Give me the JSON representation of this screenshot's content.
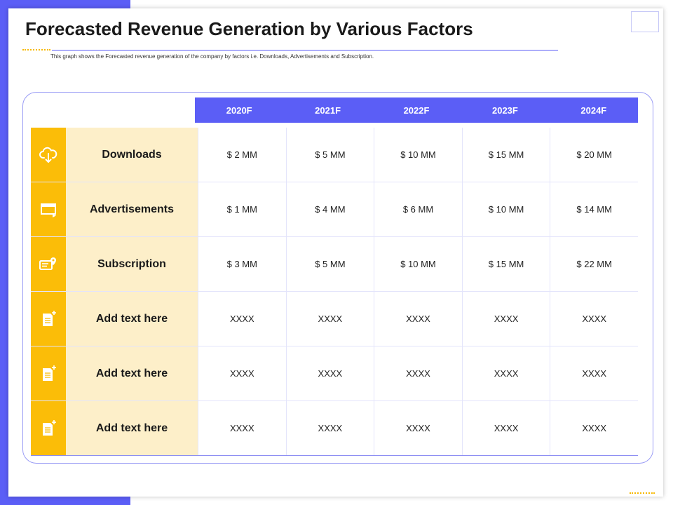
{
  "title": "Forecasted Revenue Generation by Various Factors",
  "subtitle": "This graph shows the Forecasted revenue generation  of the company by factors i.e. Downloads, Advertisements  and Subscription.",
  "colors": {
    "accent": "#5b5ef6",
    "yellow": "#fbbd08",
    "light_yellow": "#fdefc9"
  },
  "years": [
    "2020F",
    "2021F",
    "2022F",
    "2023F",
    "2024F"
  ],
  "rows": [
    {
      "label": "Downloads",
      "icon": "cloud-download-icon",
      "values": [
        "$ 2 MM",
        "$ 5 MM",
        "$ 10 MM",
        "$ 15 MM",
        "$ 20 MM"
      ]
    },
    {
      "label": "Advertisements",
      "icon": "ad-window-icon",
      "values": [
        "$ 1 MM",
        "$ 4 MM",
        "$ 6 MM",
        "$ 10 MM",
        "$ 14 MM"
      ]
    },
    {
      "label": "Subscription",
      "icon": "subscription-card-icon",
      "values": [
        "$ 3 MM",
        "$ 5 MM",
        "$ 10 MM",
        "$ 15 MM",
        "$ 22 MM"
      ]
    },
    {
      "label": "Add text here",
      "icon": "add-note-icon",
      "values": [
        "XXXX",
        "XXXX",
        "XXXX",
        "XXXX",
        "XXXX"
      ]
    },
    {
      "label": "Add text here",
      "icon": "add-note-icon",
      "values": [
        "XXXX",
        "XXXX",
        "XXXX",
        "XXXX",
        "XXXX"
      ]
    },
    {
      "label": "Add text here",
      "icon": "add-note-icon",
      "values": [
        "XXXX",
        "XXXX",
        "XXXX",
        "XXXX",
        "XXXX"
      ]
    }
  ]
}
